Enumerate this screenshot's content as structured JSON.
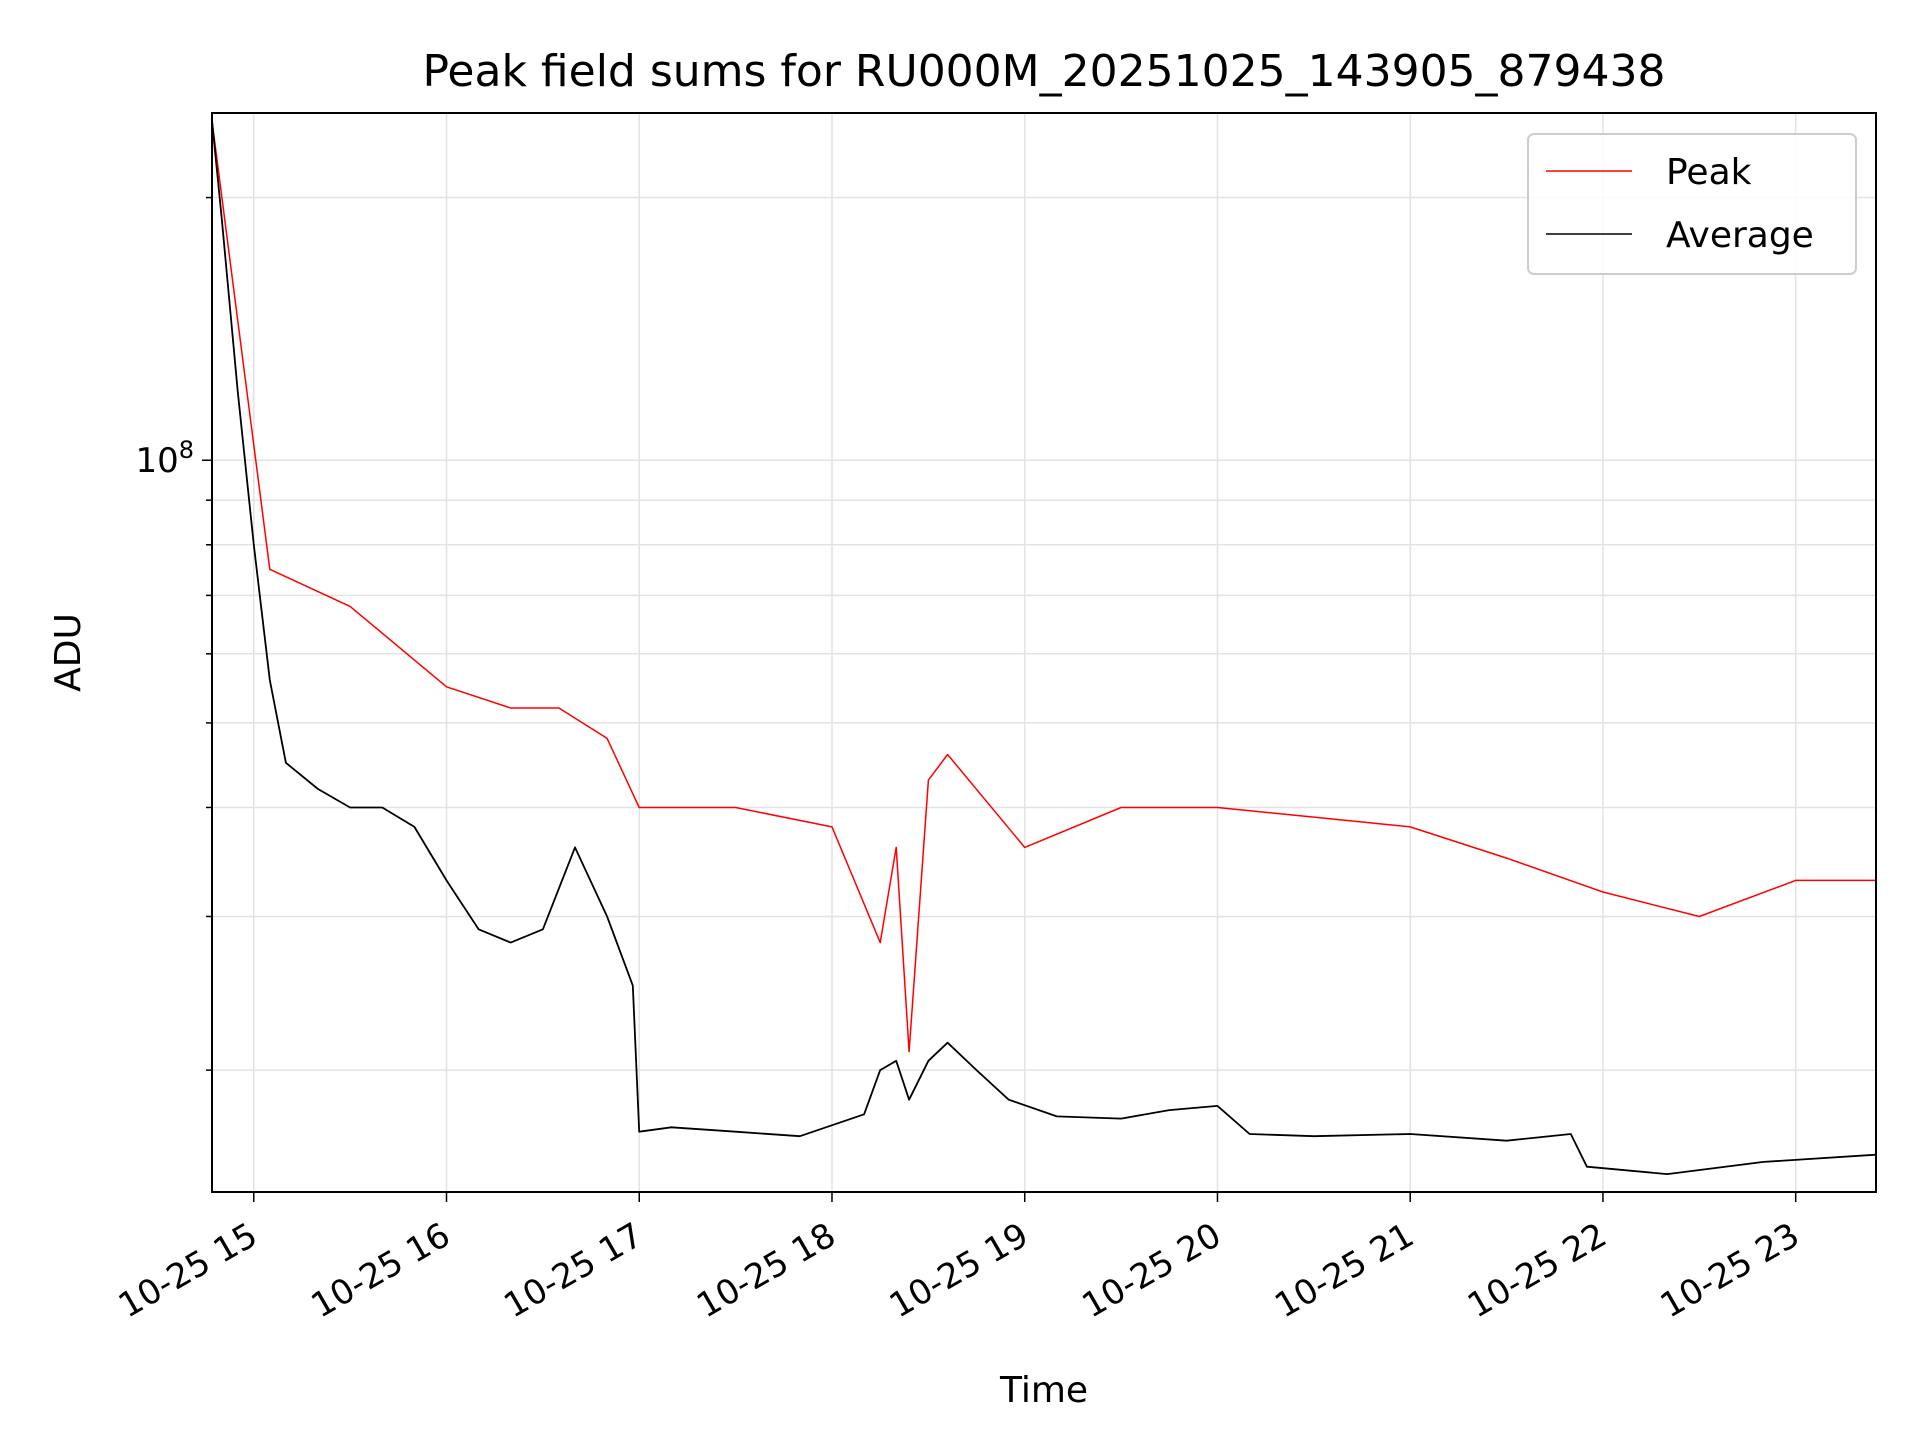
{
  "chart_data": {
    "type": "line",
    "title": "Peak field sums for RU000M_20251025_143905_879438",
    "xlabel": "Time",
    "ylabel": "ADU",
    "y_scale": "log",
    "xlim": [
      "2025-10-25 14:47",
      "2025-10-25 23:25"
    ],
    "ylim": [
      14500000,
      250000000
    ],
    "x_tick_labels": [
      "10-25 15",
      "10-25 16",
      "10-25 17",
      "10-25 18",
      "10-25 19",
      "10-25 20",
      "10-25 21",
      "10-25 22",
      "10-25 23"
    ],
    "x_ticks": [
      "2025-10-25 15:00",
      "2025-10-25 16:00",
      "2025-10-25 17:00",
      "2025-10-25 18:00",
      "2025-10-25 19:00",
      "2025-10-25 20:00",
      "2025-10-25 21:00",
      "2025-10-25 22:00",
      "2025-10-25 23:00"
    ],
    "y_major_tick": {
      "value": 100000000,
      "label_base": "10",
      "label_exp": "8"
    },
    "y_minor_ticks": [
      20000000,
      30000000,
      40000000,
      50000000,
      60000000,
      70000000,
      80000000,
      90000000,
      200000000
    ],
    "grid": true,
    "legend_position": "top-right",
    "series": [
      {
        "name": "Average",
        "color": "#000000",
        "x": [
          "2025-10-25 14:47",
          "2025-10-25 14:50",
          "2025-10-25 14:55",
          "2025-10-25 15:00",
          "2025-10-25 15:05",
          "2025-10-25 15:10",
          "2025-10-25 15:20",
          "2025-10-25 15:30",
          "2025-10-25 15:40",
          "2025-10-25 15:50",
          "2025-10-25 16:00",
          "2025-10-25 16:10",
          "2025-10-25 16:20",
          "2025-10-25 16:30",
          "2025-10-25 16:40",
          "2025-10-25 16:50",
          "2025-10-25 16:58",
          "2025-10-25 17:00",
          "2025-10-25 17:10",
          "2025-10-25 17:30",
          "2025-10-25 17:50",
          "2025-10-25 18:10",
          "2025-10-25 18:15",
          "2025-10-25 18:20",
          "2025-10-25 18:24",
          "2025-10-25 18:30",
          "2025-10-25 18:36",
          "2025-10-25 18:45",
          "2025-10-25 18:55",
          "2025-10-25 19:10",
          "2025-10-25 19:30",
          "2025-10-25 19:45",
          "2025-10-25 20:00",
          "2025-10-25 20:10",
          "2025-10-25 20:30",
          "2025-10-25 21:00",
          "2025-10-25 21:30",
          "2025-10-25 21:50",
          "2025-10-25 21:55",
          "2025-10-25 22:20",
          "2025-10-25 22:50",
          "2025-10-25 23:25"
        ],
        "values": [
          245000000,
          190000000,
          120000000,
          80000000,
          56000000,
          45000000,
          42000000,
          40000000,
          40000000,
          38000000,
          33000000,
          29000000,
          28000000,
          29000000,
          36000000,
          30000000,
          25000000,
          17000000,
          17200000,
          17000000,
          16800000,
          17800000,
          20000000,
          20500000,
          18500000,
          20500000,
          21500000,
          20000000,
          18500000,
          17700000,
          17600000,
          18000000,
          18200000,
          16900000,
          16800000,
          16900000,
          16600000,
          16900000,
          15500000,
          15200000,
          15700000,
          16000000
        ]
      },
      {
        "name": "Peak",
        "color": "#ff0000",
        "x": [
          "2025-10-25 14:47",
          "2025-10-25 15:05",
          "2025-10-25 15:30",
          "2025-10-25 16:00",
          "2025-10-25 16:20",
          "2025-10-25 16:35",
          "2025-10-25 16:50",
          "2025-10-25 17:00",
          "2025-10-25 17:30",
          "2025-10-25 18:00",
          "2025-10-25 18:15",
          "2025-10-25 18:20",
          "2025-10-25 18:24",
          "2025-10-25 18:30",
          "2025-10-25 18:36",
          "2025-10-25 19:00",
          "2025-10-25 19:30",
          "2025-10-25 20:00",
          "2025-10-25 20:30",
          "2025-10-25 21:00",
          "2025-10-25 21:30",
          "2025-10-25 22:00",
          "2025-10-25 22:30",
          "2025-10-25 23:00",
          "2025-10-25 23:25"
        ],
        "values": [
          245000000,
          75000000,
          68000000,
          55000000,
          52000000,
          52000000,
          48000000,
          40000000,
          40000000,
          38000000,
          28000000,
          36000000,
          21000000,
          43000000,
          46000000,
          36000000,
          40000000,
          40000000,
          39000000,
          38000000,
          35000000,
          32000000,
          30000000,
          33000000,
          33000000
        ]
      }
    ]
  }
}
